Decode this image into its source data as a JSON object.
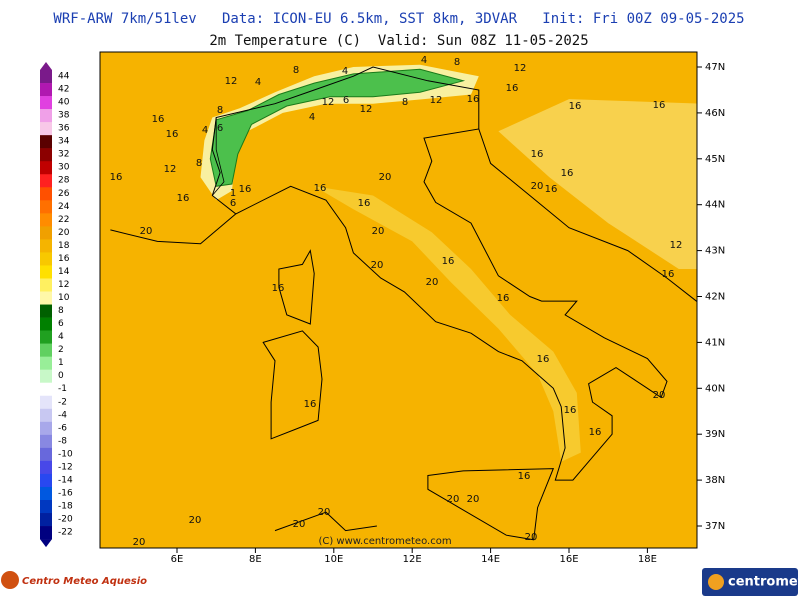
{
  "header": {
    "line1": "WRF-ARW 7km/51lev   Data: ICON-EU 6.5km, SST 8km, 3DVAR   Init: Fri 00Z 09-05-2025",
    "line2": "2m Temperature (C)  Valid: Sun 08Z 11-05-2025"
  },
  "colorbar": {
    "levels": [
      44,
      42,
      40,
      38,
      36,
      34,
      32,
      30,
      28,
      26,
      24,
      22,
      20,
      18,
      16,
      14,
      12,
      10,
      8,
      6,
      4,
      2,
      1,
      0,
      -1,
      -2,
      -4,
      -6,
      -8,
      -10,
      -12,
      -14,
      -16,
      -18,
      -20,
      -22
    ],
    "colors": [
      "#7a1a8a",
      "#b018b0",
      "#e040e0",
      "#f0a0e8",
      "#f8c8e8",
      "#5a0000",
      "#8c0000",
      "#c00000",
      "#ff2020",
      "#ff5000",
      "#ff7000",
      "#ff8c00",
      "#f0a000",
      "#f5b400",
      "#f8c800",
      "#ffe000",
      "#fff060",
      "#fff8a8",
      "#006000",
      "#008000",
      "#20a020",
      "#60d060",
      "#98ee98",
      "#c8f8c8",
      "#ffffff",
      "#e4e4fa",
      "#c8c8f2",
      "#a8a8ea",
      "#8888e2",
      "#6868dc",
      "#4848e8",
      "#2848f0",
      "#0058e0",
      "#0038c0",
      "#0020a0",
      "#000080"
    ]
  },
  "map": {
    "lat_labels": [
      "47N",
      "46N",
      "45N",
      "44N",
      "43N",
      "42N",
      "41N",
      "40N",
      "39N",
      "38N",
      "37N"
    ],
    "lon_labels": [
      "6E",
      "8E",
      "10E",
      "12E",
      "14E",
      "16E",
      "18E"
    ],
    "contour_labels": [
      12,
      4,
      8,
      4,
      4,
      8,
      12,
      16,
      16,
      16,
      16,
      16,
      8,
      4,
      6,
      4,
      12,
      6,
      12,
      8,
      12,
      16,
      12,
      8,
      16,
      16,
      1,
      16,
      6,
      16,
      20,
      16,
      20,
      16,
      16,
      20,
      16,
      20,
      20,
      16,
      20,
      16,
      16,
      12,
      16,
      16,
      16,
      20,
      16,
      16,
      16,
      20,
      20,
      20,
      20,
      20,
      20,
      20
    ],
    "copyright": "(C) www.centrometeo.com"
  },
  "footer": {
    "left_logo": "Centro Meteo Aquesio",
    "right_logo": "centrometeo"
  }
}
